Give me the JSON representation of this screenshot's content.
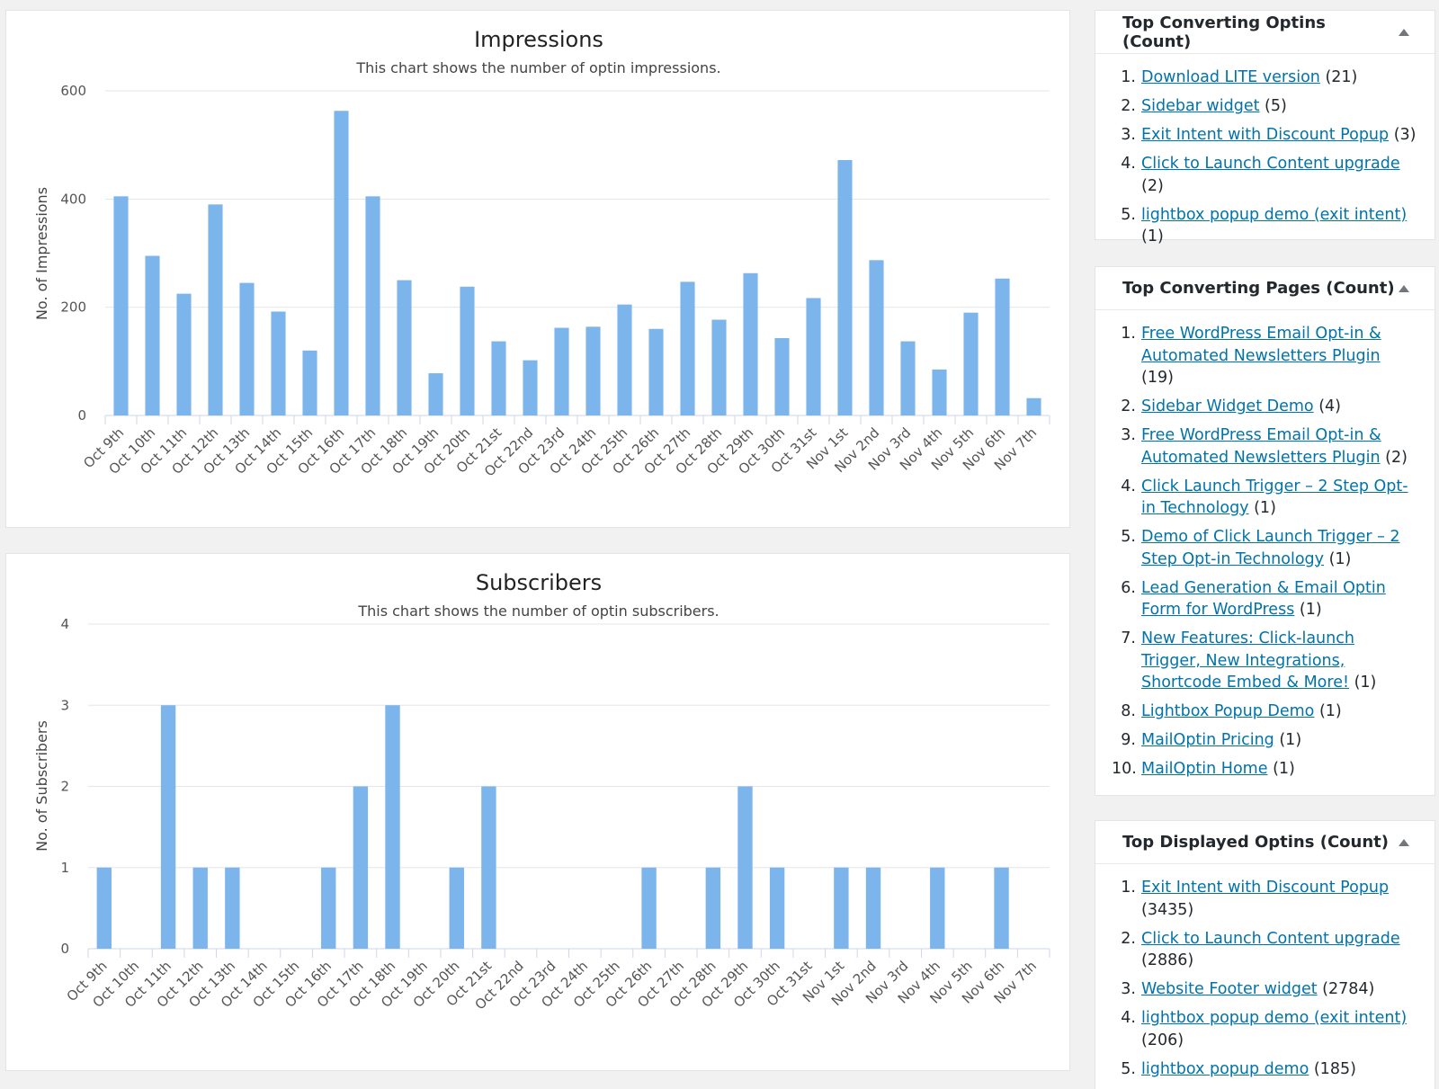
{
  "colors": {
    "bar": "#7cb5ec",
    "grid": "#e6e6e6",
    "link": "#0073aa"
  },
  "icons": {
    "widget_toggle": "triangle-up-icon"
  },
  "chart_data": [
    {
      "type": "bar",
      "title": "Impressions",
      "subtitle": "This chart shows the number of optin impressions.",
      "xlabel": "",
      "ylabel": "No. of Impressions",
      "ylim": [
        0,
        600
      ],
      "yticks": [
        "0",
        "200",
        "400",
        "600"
      ],
      "grid": true,
      "categories": [
        "Oct 9th",
        "Oct 10th",
        "Oct 11th",
        "Oct 12th",
        "Oct 13th",
        "Oct 14th",
        "Oct 15th",
        "Oct 16th",
        "Oct 17th",
        "Oct 18th",
        "Oct 19th",
        "Oct 20th",
        "Oct 21st",
        "Oct 22nd",
        "Oct 23rd",
        "Oct 24th",
        "Oct 25th",
        "Oct 26th",
        "Oct 27th",
        "Oct 28th",
        "Oct 29th",
        "Oct 30th",
        "Oct 31st",
        "Nov 1st",
        "Nov 2nd",
        "Nov 3rd",
        "Nov 4th",
        "Nov 5th",
        "Nov 6th",
        "Nov 7th"
      ],
      "values": [
        405,
        295,
        225,
        390,
        245,
        192,
        120,
        563,
        405,
        250,
        78,
        238,
        137,
        102,
        162,
        164,
        205,
        160,
        247,
        177,
        263,
        143,
        217,
        472,
        287,
        137,
        85,
        190,
        253,
        32
      ]
    },
    {
      "type": "bar",
      "title": "Subscribers",
      "subtitle": "This chart shows the number of optin subscribers.",
      "xlabel": "",
      "ylabel": "No. of Subscribers",
      "ylim": [
        0,
        4
      ],
      "yticks": [
        "0",
        "1",
        "2",
        "3",
        "4"
      ],
      "grid": true,
      "categories": [
        "Oct 9th",
        "Oct 10th",
        "Oct 11th",
        "Oct 12th",
        "Oct 13th",
        "Oct 14th",
        "Oct 15th",
        "Oct 16th",
        "Oct 17th",
        "Oct 18th",
        "Oct 19th",
        "Oct 20th",
        "Oct 21st",
        "Oct 22nd",
        "Oct 23rd",
        "Oct 24th",
        "Oct 25th",
        "Oct 26th",
        "Oct 27th",
        "Oct 28th",
        "Oct 29th",
        "Oct 30th",
        "Oct 31st",
        "Nov 1st",
        "Nov 2nd",
        "Nov 3rd",
        "Nov 4th",
        "Nov 5th",
        "Nov 6th",
        "Nov 7th"
      ],
      "values": [
        1,
        0,
        3,
        1,
        1,
        0,
        0,
        1,
        2,
        3,
        0,
        1,
        2,
        0,
        0,
        0,
        0,
        1,
        0,
        1,
        2,
        1,
        0,
        1,
        1,
        0,
        1,
        0,
        1,
        0
      ]
    }
  ],
  "widgets": [
    {
      "title": "Top Converting Optins (Count)",
      "items": [
        {
          "num": "1.",
          "link": "Download LITE version",
          "count": " (21)"
        },
        {
          "num": "2.",
          "link": "Sidebar widget",
          "count": " (5)"
        },
        {
          "num": "3.",
          "link": "Exit Intent with Discount Popup",
          "count": " (3)"
        },
        {
          "num": "4.",
          "link": "Click to Launch Content upgrade",
          "count": " (2)"
        },
        {
          "num": "5.",
          "link": "lightbox popup demo (exit intent)",
          "count": " (1)"
        }
      ]
    },
    {
      "title": "Top Converting Pages (Count)",
      "items": [
        {
          "num": "1.",
          "link": "Free WordPress Email Opt-in & Automated Newsletters Plugin",
          "count": " (19)"
        },
        {
          "num": "2.",
          "link": "Sidebar Widget Demo",
          "count": " (4)"
        },
        {
          "num": "3.",
          "link": "Free WordPress Email Opt-in & Automated Newsletters Plugin",
          "count": " (2)"
        },
        {
          "num": "4.",
          "link": "Click Launch Trigger – 2 Step Opt-in Technology",
          "count": " (1)"
        },
        {
          "num": "5.",
          "link": "Demo of Click Launch Trigger – 2 Step Opt-in Technology",
          "count": " (1)"
        },
        {
          "num": "6.",
          "link": "Lead Generation & Email Optin Form for WordPress",
          "count": " (1)"
        },
        {
          "num": "7.",
          "link": "New Features: Click-launch Trigger, New Integrations, Shortcode Embed & More!",
          "count": " (1)"
        },
        {
          "num": "8.",
          "link": "Lightbox Popup Demo",
          "count": " (1)"
        },
        {
          "num": "9.",
          "link": "MailOptin Pricing",
          "count": " (1)"
        },
        {
          "num": "10.",
          "link": "MailOptin Home",
          "count": " (1)"
        }
      ]
    },
    {
      "title": "Top Displayed Optins (Count)",
      "items": [
        {
          "num": "1.",
          "link": "Exit Intent with Discount Popup",
          "count": " (3435)"
        },
        {
          "num": "2.",
          "link": "Click to Launch Content upgrade",
          "count": " (2886)"
        },
        {
          "num": "3.",
          "link": "Website Footer widget",
          "count": " (2784)"
        },
        {
          "num": "4.",
          "link": "lightbox popup demo (exit intent)",
          "count": " (206)"
        },
        {
          "num": "5.",
          "link": "lightbox popup demo",
          "count": " (185)"
        }
      ]
    }
  ]
}
